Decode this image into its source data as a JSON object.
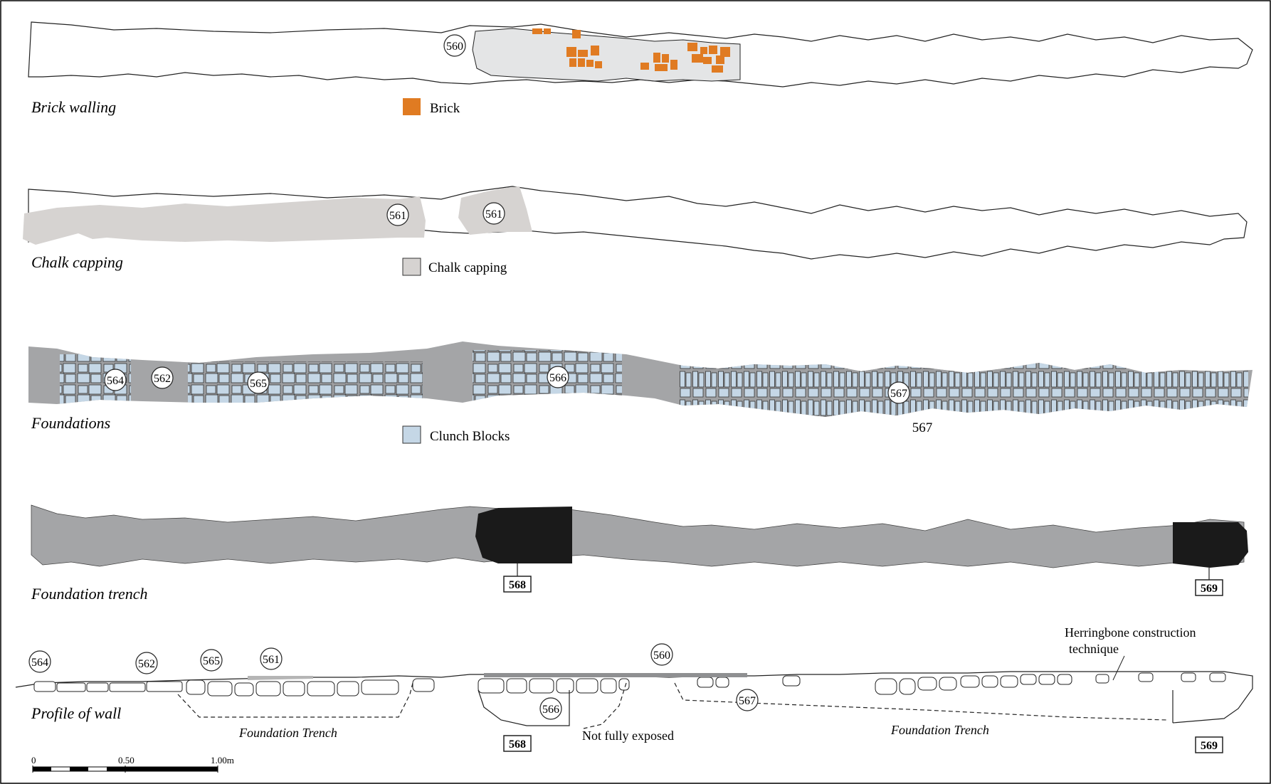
{
  "colors": {
    "brick": "#e07b22",
    "chalk": "#d6d3d1",
    "clunch": "#c5d7e6",
    "wall_fill": "#a4a5a7",
    "wall_light": "#e4e5e6",
    "black_fill": "#1a1a1a",
    "line": "#222222"
  },
  "plans": {
    "brick_walling": {
      "title": "Brick walling",
      "ctx_560": "560"
    },
    "chalk_capping": {
      "title": "Chalk capping",
      "ctx_561a": "561",
      "ctx_561b": "561"
    },
    "foundations": {
      "title": "Foundations",
      "ctx_564": "564",
      "ctx_562": "562",
      "ctx_565": "565",
      "ctx_566": "566",
      "ctx_567": "567",
      "label_567": "567"
    },
    "foundation_trench": {
      "title": "Foundation trench",
      "ctx_568": "568",
      "ctx_569": "569"
    },
    "profile": {
      "title": "Profile of wall",
      "ctx_564": "564",
      "ctx_562": "562",
      "ctx_565": "565",
      "ctx_561": "561",
      "ctx_560": "560",
      "ctx_566": "566",
      "ctx_567": "567",
      "box_568": "568",
      "box_569": "569",
      "note_herringbone_1": "Herringbone construction",
      "note_herringbone_2": "technique",
      "not_fully_exposed": "Not fully exposed",
      "trench_label_1": "Foundation Trench",
      "trench_label_2": "Foundation Trench"
    }
  },
  "legend": {
    "brick": "Brick",
    "chalk": "Chalk capping",
    "clunch": "Clunch Blocks"
  },
  "scale_bar": {
    "label_0": "0",
    "label_050": "0.50",
    "label_100": "1.00m"
  }
}
